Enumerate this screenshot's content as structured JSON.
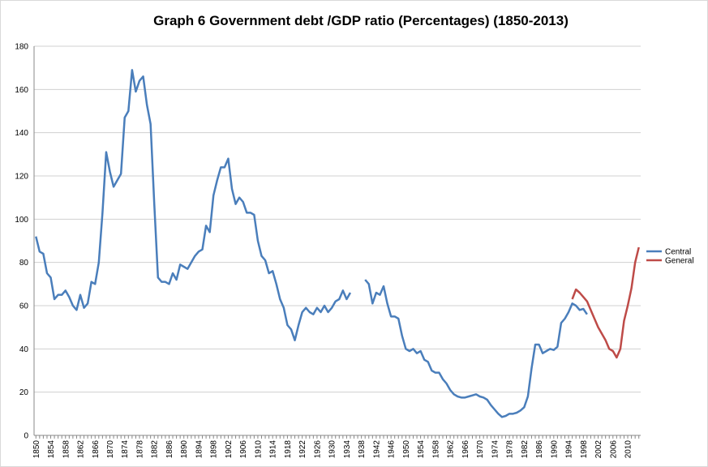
{
  "chart_data": {
    "type": "line",
    "title": "Graph 6 Government debt /GDP ratio (Percentages) (1850-2013)",
    "x": [
      1850,
      1851,
      1852,
      1853,
      1854,
      1855,
      1856,
      1857,
      1858,
      1859,
      1860,
      1861,
      1862,
      1863,
      1864,
      1865,
      1866,
      1867,
      1868,
      1869,
      1870,
      1871,
      1872,
      1873,
      1874,
      1875,
      1876,
      1877,
      1878,
      1879,
      1880,
      1881,
      1882,
      1883,
      1884,
      1885,
      1886,
      1887,
      1888,
      1889,
      1890,
      1891,
      1892,
      1893,
      1894,
      1895,
      1896,
      1897,
      1898,
      1899,
      1900,
      1901,
      1902,
      1903,
      1904,
      1905,
      1906,
      1907,
      1908,
      1909,
      1910,
      1911,
      1912,
      1913,
      1914,
      1915,
      1916,
      1917,
      1918,
      1919,
      1920,
      1921,
      1922,
      1923,
      1924,
      1925,
      1926,
      1927,
      1928,
      1929,
      1930,
      1931,
      1932,
      1933,
      1934,
      1935,
      1936,
      1937,
      1938,
      1939,
      1940,
      1941,
      1942,
      1943,
      1944,
      1945,
      1946,
      1947,
      1948,
      1949,
      1950,
      1951,
      1952,
      1953,
      1954,
      1955,
      1956,
      1957,
      1958,
      1959,
      1960,
      1961,
      1962,
      1963,
      1964,
      1965,
      1966,
      1967,
      1968,
      1969,
      1970,
      1971,
      1972,
      1973,
      1974,
      1975,
      1976,
      1977,
      1978,
      1979,
      1980,
      1981,
      1982,
      1983,
      1984,
      1985,
      1986,
      1987,
      1988,
      1989,
      1990,
      1991,
      1992,
      1993,
      1994,
      1995,
      1996,
      1997,
      1998,
      1999,
      2000,
      2001,
      2002,
      2003,
      2004,
      2005,
      2006,
      2007,
      2008,
      2009,
      2010,
      2011,
      2012,
      2013
    ],
    "series": [
      {
        "name": "Central",
        "color": "#4a7ebb",
        "values": [
          92,
          85,
          84,
          75,
          73,
          63,
          65,
          65,
          67,
          64,
          60,
          58,
          65,
          59,
          61,
          71,
          70,
          80,
          103,
          131,
          122,
          115,
          118,
          121,
          147,
          150,
          169,
          159,
          164,
          166,
          153,
          144,
          107,
          73,
          71,
          71,
          70,
          75,
          72,
          79,
          78,
          77,
          80,
          83,
          85,
          86,
          97,
          94,
          111,
          118,
          124,
          124,
          128,
          114,
          107,
          110,
          108,
          103,
          103,
          102,
          90,
          83,
          81,
          75,
          76,
          70,
          63,
          59,
          51,
          49,
          44,
          51,
          57,
          59,
          57,
          56,
          59,
          57,
          60,
          57,
          59,
          62,
          63,
          67,
          63,
          66,
          null,
          null,
          null,
          72,
          70,
          61,
          66,
          65,
          69,
          61,
          55,
          55,
          54,
          46,
          40,
          39,
          40,
          38,
          39,
          35,
          34,
          30,
          29,
          29,
          26,
          24,
          21,
          19,
          18,
          17.5,
          17.5,
          18,
          18.5,
          19,
          18,
          17.5,
          16.5,
          14,
          12,
          10,
          8.5,
          9,
          10,
          10,
          10.5,
          11.5,
          13,
          18,
          31,
          42,
          42,
          38,
          39,
          40,
          39.5,
          41,
          52,
          54,
          57,
          61,
          60,
          58,
          58.5,
          56,
          null,
          null,
          null,
          null,
          null,
          null,
          null,
          null,
          null,
          null,
          null,
          null,
          null,
          null
        ]
      },
      {
        "name": "General",
        "color": "#be4b48",
        "x": [
          1995,
          1996,
          1997,
          1998,
          1999,
          2000,
          2001,
          2002,
          2003,
          2004,
          2005,
          2006,
          2007,
          2008,
          2009,
          2010,
          2011,
          2012,
          2013
        ],
        "values": [
          63,
          67.5,
          66,
          64,
          62,
          58,
          54,
          50,
          47,
          44,
          40,
          39,
          36,
          40,
          53,
          60,
          68,
          80,
          87
        ]
      }
    ],
    "xlim": [
      1849.5,
      2013.5
    ],
    "xticks": [
      1850,
      1854,
      1858,
      1862,
      1866,
      1870,
      1874,
      1878,
      1882,
      1886,
      1890,
      1894,
      1898,
      1902,
      1906,
      1910,
      1914,
      1918,
      1922,
      1926,
      1930,
      1934,
      1938,
      1942,
      1946,
      1950,
      1954,
      1958,
      1962,
      1966,
      1970,
      1974,
      1978,
      1982,
      1986,
      1990,
      1994,
      1998,
      2002,
      2006,
      2010
    ],
    "ylim": [
      0,
      180
    ],
    "yticks": [
      0,
      20,
      40,
      60,
      80,
      100,
      120,
      140,
      160,
      180
    ],
    "grid": true,
    "legend": "right"
  }
}
